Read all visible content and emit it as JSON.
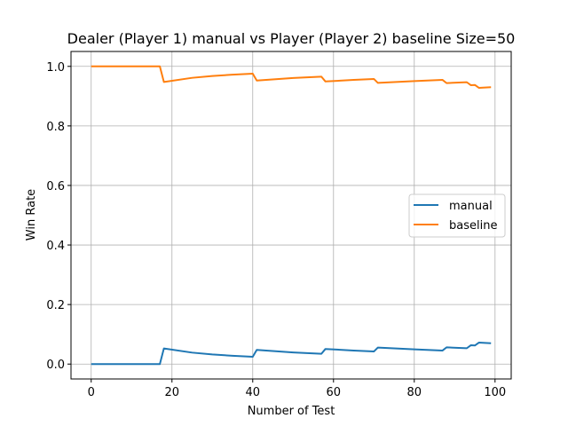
{
  "chart_data": {
    "type": "line",
    "title": "Dealer (Player 1) manual vs Player (Player 2) baseline Size=50",
    "xlabel": "Number of Test",
    "ylabel": "Win Rate",
    "xlim": [
      -5,
      104
    ],
    "ylim": [
      -0.05,
      1.05
    ],
    "xticks": [
      0,
      20,
      40,
      60,
      80,
      100
    ],
    "yticks": [
      0.0,
      0.2,
      0.4,
      0.6,
      0.8,
      1.0
    ],
    "xtick_labels": [
      "0",
      "20",
      "40",
      "60",
      "80",
      "100"
    ],
    "ytick_labels": [
      "0.0",
      "0.2",
      "0.4",
      "0.6",
      "0.8",
      "1.0"
    ],
    "grid": true,
    "legend_position": "center-right",
    "series": [
      {
        "name": "manual",
        "color": "#1f77b4",
        "points": [
          [
            0,
            0
          ],
          [
            17,
            0
          ],
          [
            18,
            0.0526
          ],
          [
            25,
            0.0385
          ],
          [
            30,
            0.0323
          ],
          [
            35,
            0.0278
          ],
          [
            40,
            0.0244
          ],
          [
            41,
            0.0476
          ],
          [
            50,
            0.0392
          ],
          [
            57,
            0.0345
          ],
          [
            58,
            0.0508
          ],
          [
            65,
            0.0455
          ],
          [
            70,
            0.0423
          ],
          [
            71,
            0.0556
          ],
          [
            80,
            0.0494
          ],
          [
            87,
            0.0455
          ],
          [
            88,
            0.0562
          ],
          [
            93,
            0.0532
          ],
          [
            94,
            0.0632
          ],
          [
            95,
            0.0625
          ],
          [
            96,
            0.0722
          ],
          [
            99,
            0.07
          ]
        ]
      },
      {
        "name": "baseline",
        "color": "#ff7f0e",
        "points": [
          [
            0,
            1
          ],
          [
            17,
            1
          ],
          [
            18,
            0.9474
          ],
          [
            25,
            0.9615
          ],
          [
            30,
            0.9677
          ],
          [
            35,
            0.9722
          ],
          [
            40,
            0.9756
          ],
          [
            41,
            0.9524
          ],
          [
            50,
            0.9608
          ],
          [
            57,
            0.9655
          ],
          [
            58,
            0.9492
          ],
          [
            65,
            0.9545
          ],
          [
            70,
            0.9577
          ],
          [
            71,
            0.9444
          ],
          [
            80,
            0.9506
          ],
          [
            87,
            0.9545
          ],
          [
            88,
            0.9438
          ],
          [
            93,
            0.9468
          ],
          [
            94,
            0.9368
          ],
          [
            95,
            0.9375
          ],
          [
            96,
            0.9278
          ],
          [
            99,
            0.93
          ]
        ]
      }
    ]
  }
}
